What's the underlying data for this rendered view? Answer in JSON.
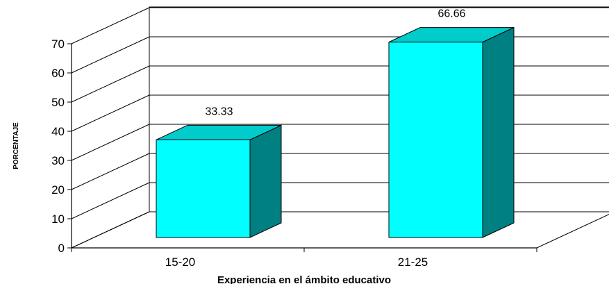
{
  "chart_data": {
    "type": "bar",
    "categories": [
      "15-20",
      "21-25"
    ],
    "values": [
      33.33,
      66.66
    ],
    "data_labels": [
      "33.33",
      "66.66"
    ],
    "xlabel": "Experiencia en el ámbito educativo",
    "ylabel": "PORCENTAJE",
    "ylim": [
      0,
      70
    ],
    "yticks": [
      "0",
      "10",
      "20",
      "30",
      "40",
      "50",
      "60",
      "70"
    ],
    "grid": true,
    "legend": "none",
    "style": "3d",
    "colors": {
      "bar_front": "#00FFFF",
      "bar_side": "#008080",
      "bar_top": "#00CCCC",
      "outline": "#000000",
      "grid": "#000000"
    }
  }
}
